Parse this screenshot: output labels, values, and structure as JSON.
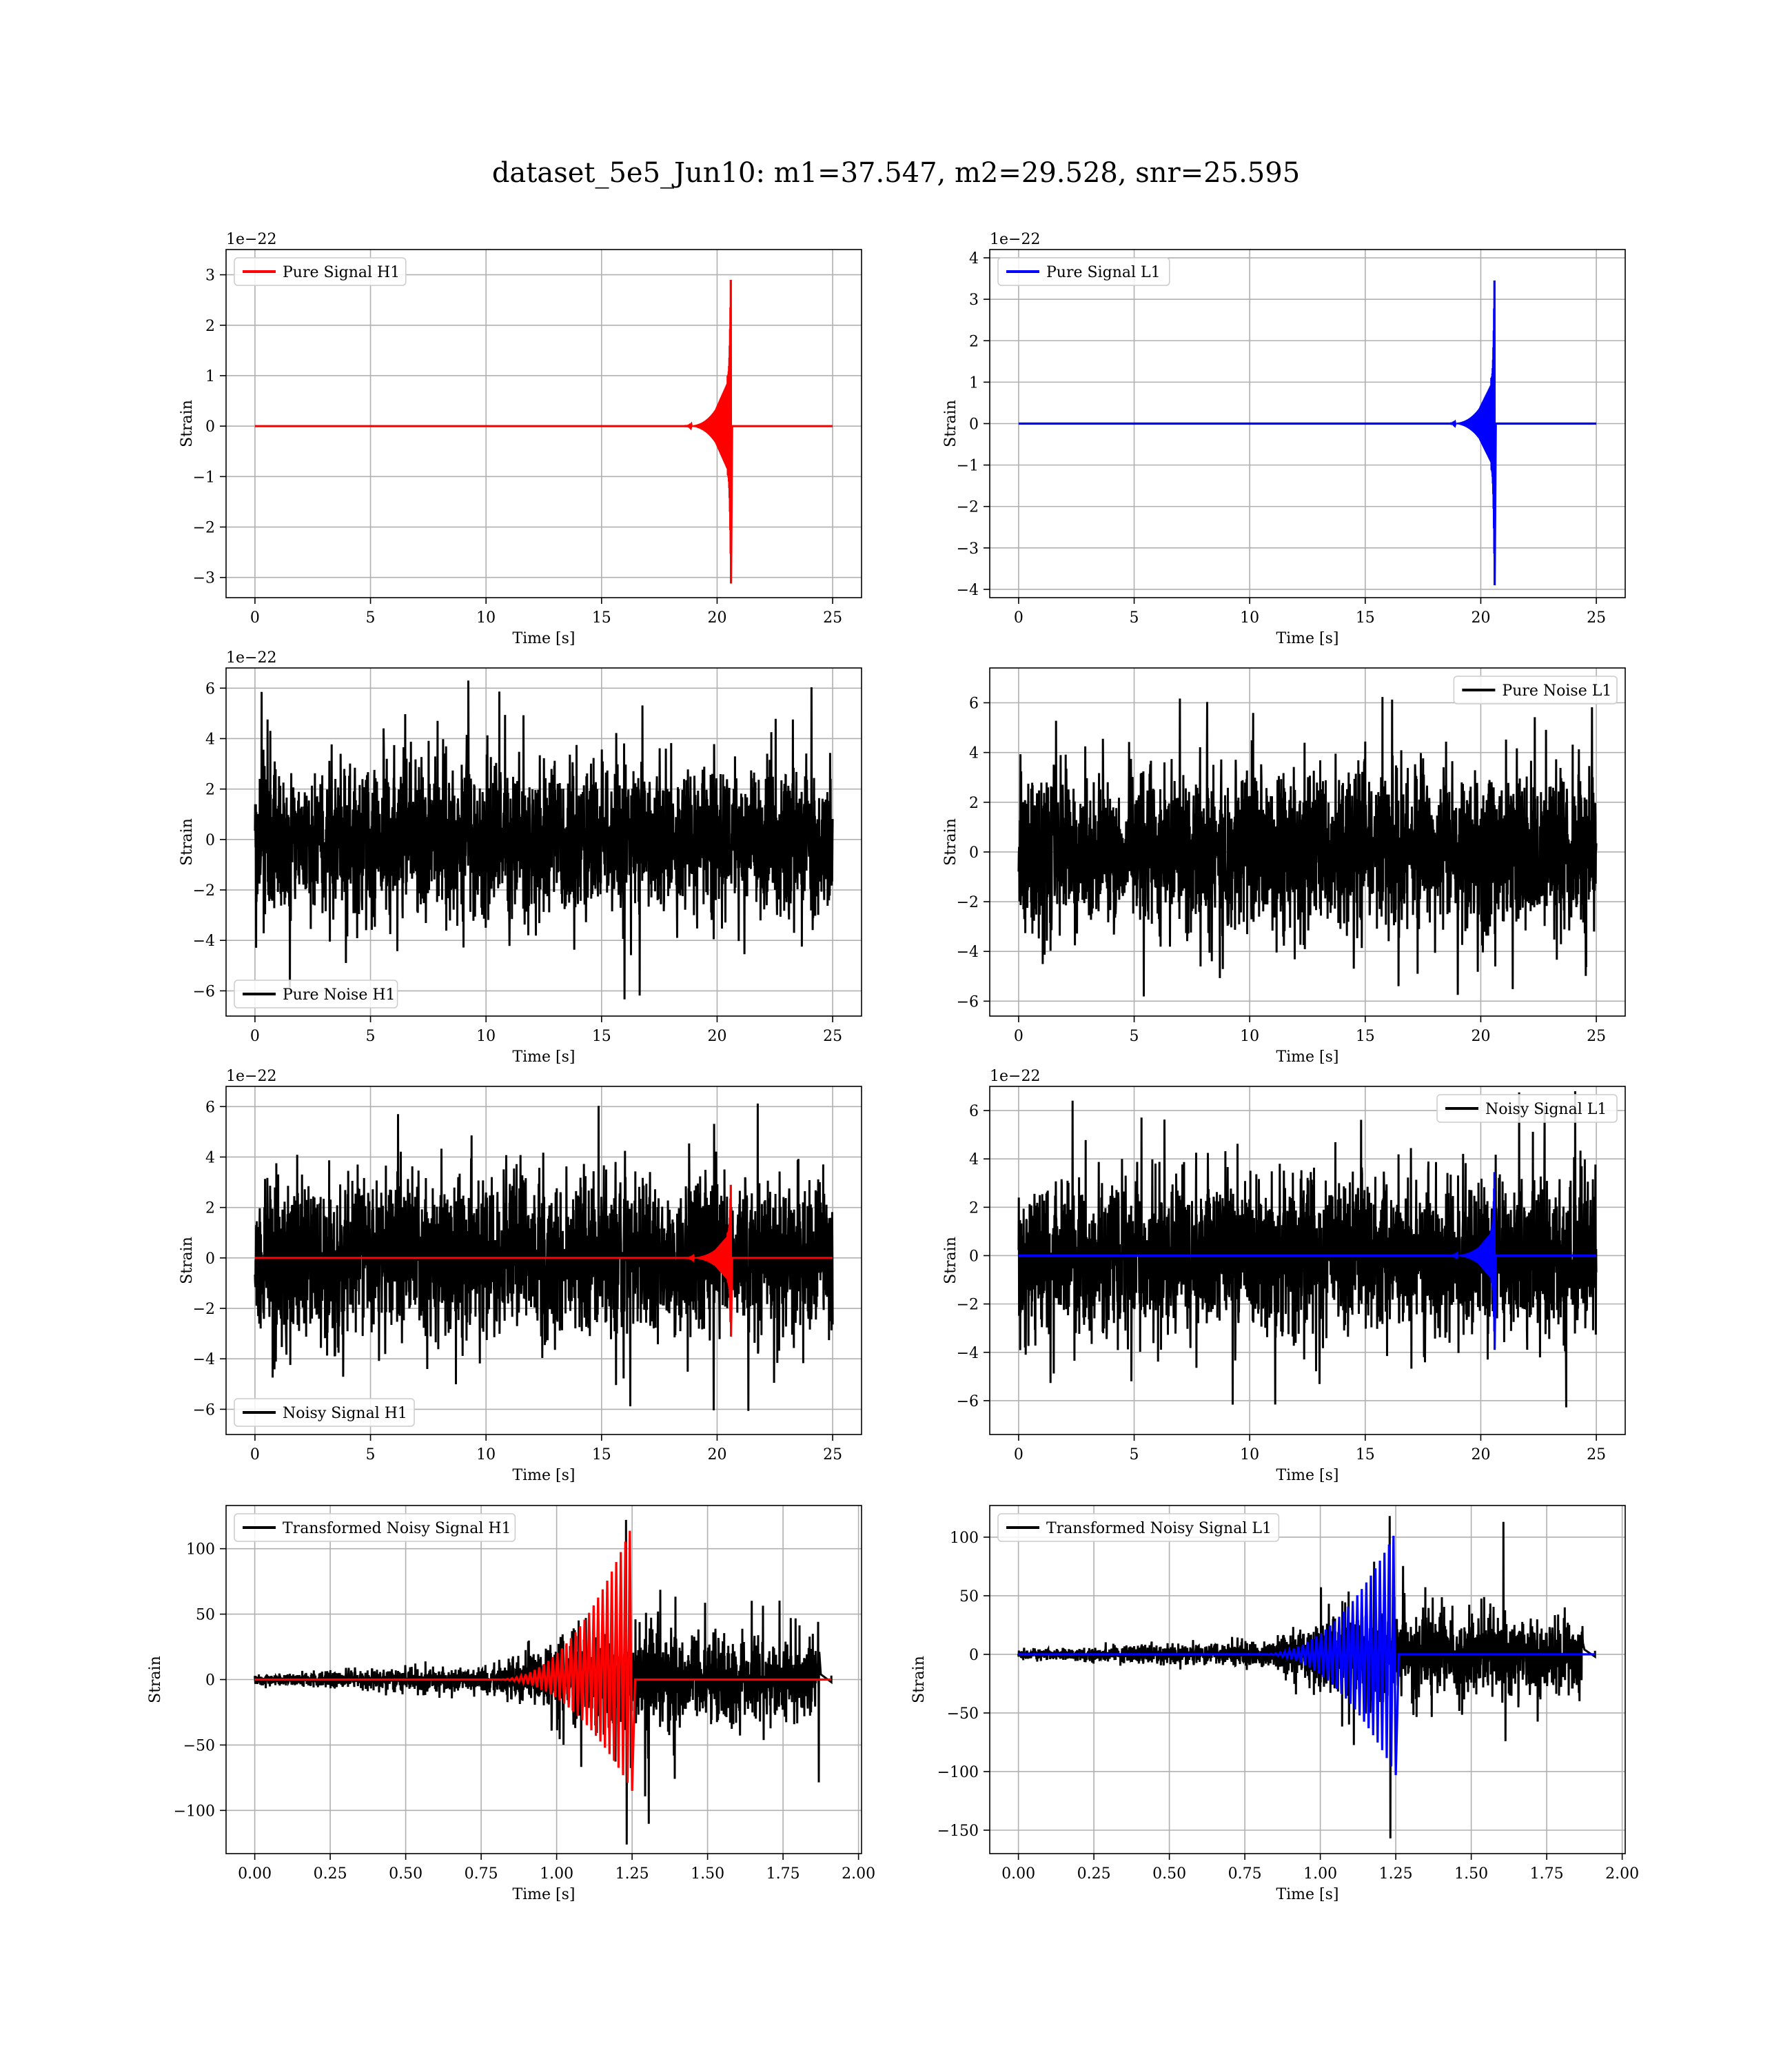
{
  "title": "dataset_5e5_Jun10: m1=37.547, m2=29.528, snr=25.595",
  "colors": {
    "red": "#ff0000",
    "blue": "#0000ff",
    "black": "#000000",
    "grid": "#b0b0b0"
  },
  "chart_data": [
    {
      "type": "line",
      "kind": "chirp",
      "legend": "Pure Signal H1",
      "legend_loc": "upper-left",
      "legend_color": "#ff0000",
      "offset_label": "1e−22",
      "xlabel": "Time [s]",
      "ylabel": "Strain",
      "xlim": [
        -1.25,
        26.25
      ],
      "ylim": [
        -3.4,
        3.5
      ],
      "xticks": [
        0,
        5,
        10,
        15,
        20,
        25
      ],
      "xtick_labels": [
        "0",
        "5",
        "10",
        "15",
        "20",
        "25"
      ],
      "yticks": [
        -3,
        -2,
        -1,
        0,
        1,
        2,
        3
      ],
      "ytick_labels": [
        "−3",
        "−2",
        "−1",
        "0",
        "1",
        "2",
        "3"
      ],
      "grid": true,
      "series": [
        {
          "color": "#ff0000",
          "x_range": [
            0,
            25
          ],
          "merger": 20.6,
          "peak_pos": 3.22,
          "peak_neg": -3.12,
          "shoulder": 1.0,
          "onset": 18.5
        }
      ]
    },
    {
      "type": "line",
      "kind": "chirp",
      "legend": "Pure Signal L1",
      "legend_loc": "upper-left",
      "legend_color": "#0000ff",
      "offset_label": "1e−22",
      "xlabel": "Time [s]",
      "ylabel": "Strain",
      "xlim": [
        -1.25,
        26.25
      ],
      "ylim": [
        -4.2,
        4.2
      ],
      "xticks": [
        0,
        5,
        10,
        15,
        20,
        25
      ],
      "xtick_labels": [
        "0",
        "5",
        "10",
        "15",
        "20",
        "25"
      ],
      "yticks": [
        -4,
        -3,
        -2,
        -1,
        0,
        1,
        2,
        3,
        4
      ],
      "ytick_labels": [
        "−4",
        "−3",
        "−2",
        "−1",
        "0",
        "1",
        "2",
        "3",
        "4"
      ],
      "grid": true,
      "series": [
        {
          "color": "#0000ff",
          "x_range": [
            0,
            25
          ],
          "merger": 20.6,
          "peak_pos": 3.85,
          "peak_neg": -3.9,
          "shoulder": 1.1,
          "onset": 18.5
        }
      ]
    },
    {
      "type": "line",
      "kind": "noise",
      "legend": "Pure Noise H1",
      "legend_loc": "lower-left",
      "legend_color": "#000000",
      "offset_label": "1e−22",
      "xlabel": "Time [s]",
      "ylabel": "Strain",
      "xlim": [
        -1.25,
        26.25
      ],
      "ylim": [
        -7.0,
        6.8
      ],
      "xticks": [
        0,
        5,
        10,
        15,
        20,
        25
      ],
      "xtick_labels": [
        "0",
        "5",
        "10",
        "15",
        "20",
        "25"
      ],
      "yticks": [
        -6,
        -4,
        -2,
        0,
        2,
        4,
        6
      ],
      "ytick_labels": [
        "−6",
        "−4",
        "−2",
        "0",
        "2",
        "4",
        "6"
      ],
      "grid": true,
      "series": [
        {
          "color": "#000000",
          "x_range": [
            0,
            25
          ],
          "band": 3.6,
          "max": 6.3,
          "min": -6.5
        }
      ]
    },
    {
      "type": "line",
      "kind": "noise",
      "legend": "Pure Noise L1",
      "legend_loc": "upper-right",
      "legend_color": "#000000",
      "offset_label": "",
      "xlabel": "Time [s]",
      "ylabel": "Strain",
      "xlim": [
        -1.25,
        26.25
      ],
      "ylim": [
        -6.6,
        7.4
      ],
      "xticks": [
        0,
        5,
        10,
        15,
        20,
        25
      ],
      "xtick_labels": [
        "0",
        "5",
        "10",
        "15",
        "20",
        "25"
      ],
      "yticks": [
        -6,
        -4,
        -2,
        0,
        2,
        4,
        6
      ],
      "ytick_labels": [
        "−6",
        "−4",
        "−2",
        "0",
        "2",
        "4",
        "6"
      ],
      "grid": true,
      "series": [
        {
          "color": "#000000",
          "x_range": [
            0,
            25
          ],
          "band": 3.8,
          "max": 6.8,
          "min": -6.1
        }
      ]
    },
    {
      "type": "line",
      "kind": "noisy_chirp",
      "legend": "Noisy Signal H1",
      "legend_loc": "lower-left",
      "legend_color": "#000000",
      "offset_label": "1e−22",
      "xlabel": "Time [s]",
      "ylabel": "Strain",
      "xlim": [
        -1.25,
        26.25
      ],
      "ylim": [
        -7.0,
        6.8
      ],
      "xticks": [
        0,
        5,
        10,
        15,
        20,
        25
      ],
      "xtick_labels": [
        "0",
        "5",
        "10",
        "15",
        "20",
        "25"
      ],
      "yticks": [
        -6,
        -4,
        -2,
        0,
        2,
        4,
        6
      ],
      "ytick_labels": [
        "−6",
        "−4",
        "−2",
        "0",
        "2",
        "4",
        "6"
      ],
      "grid": true,
      "series": [
        {
          "color": "#000000",
          "x_range": [
            0,
            25
          ],
          "band": 3.6,
          "max": 6.3,
          "min": -6.5
        },
        {
          "color": "#ff0000",
          "x_range": [
            0,
            25
          ],
          "merger": 20.6,
          "peak_pos": 3.22,
          "peak_neg": -3.12,
          "shoulder": 1.0,
          "onset": 18.5
        }
      ]
    },
    {
      "type": "line",
      "kind": "noisy_chirp",
      "legend": "Noisy Signal L1",
      "legend_loc": "upper-right",
      "legend_color": "#000000",
      "offset_label": "1e−22",
      "xlabel": "Time [s]",
      "ylabel": "Strain",
      "xlim": [
        -1.25,
        26.25
      ],
      "ylim": [
        -7.4,
        7.0
      ],
      "xticks": [
        0,
        5,
        10,
        15,
        20,
        25
      ],
      "xtick_labels": [
        "0",
        "5",
        "10",
        "15",
        "20",
        "25"
      ],
      "yticks": [
        -6,
        -4,
        -2,
        0,
        2,
        4,
        6
      ],
      "ytick_labels": [
        "−6",
        "−4",
        "−2",
        "0",
        "2",
        "4",
        "6"
      ],
      "grid": true,
      "series": [
        {
          "color": "#000000",
          "x_range": [
            0,
            25
          ],
          "band": 3.8,
          "max": 6.8,
          "min": -6.8
        },
        {
          "color": "#0000ff",
          "x_range": [
            0,
            25
          ],
          "merger": 20.6,
          "peak_pos": 3.85,
          "peak_neg": -3.9,
          "shoulder": 1.1,
          "onset": 18.5
        }
      ]
    },
    {
      "type": "line",
      "kind": "transformed",
      "legend": "Transformed Noisy Signal H1",
      "legend_loc": "upper-left",
      "legend_color": "#000000",
      "offset_label": "",
      "xlabel": "Time [s]",
      "ylabel": "Strain",
      "xlim": [
        -0.095,
        2.01
      ],
      "ylim": [
        -133,
        133
      ],
      "xticks": [
        0,
        0.25,
        0.5,
        0.75,
        1.0,
        1.25,
        1.5,
        1.75,
        2.0
      ],
      "xtick_labels": [
        "0.00",
        "0.25",
        "0.50",
        "0.75",
        "1.00",
        "1.25",
        "1.50",
        "1.75",
        "2.00"
      ],
      "yticks": [
        -100,
        -50,
        0,
        50,
        100
      ],
      "ytick_labels": [
        "−100",
        "−50",
        "0",
        "50",
        "100"
      ],
      "grid": true,
      "series": [
        {
          "color": "#000000",
          "x_range": [
            0,
            1.91
          ],
          "noise_end": 1.87,
          "merger": 1.25,
          "max": 122,
          "min": -126
        },
        {
          "color": "#ff0000",
          "x_range": [
            0,
            1.91
          ],
          "merger": 1.25,
          "peak_pos": 118,
          "peak_neg": -85,
          "onset": 0.8
        }
      ]
    },
    {
      "type": "line",
      "kind": "transformed",
      "legend": "Transformed Noisy Signal L1",
      "legend_loc": "upper-left",
      "legend_color": "#000000",
      "offset_label": "",
      "xlabel": "Time [s]",
      "ylabel": "Strain",
      "xlim": [
        -0.095,
        2.01
      ],
      "ylim": [
        -170,
        127
      ],
      "xticks": [
        0,
        0.25,
        0.5,
        0.75,
        1.0,
        1.25,
        1.5,
        1.75,
        2.0
      ],
      "xtick_labels": [
        "0.00",
        "0.25",
        "0.50",
        "0.75",
        "1.00",
        "1.25",
        "1.50",
        "1.75",
        "2.00"
      ],
      "yticks": [
        -150,
        -100,
        -50,
        0,
        50,
        100
      ],
      "ytick_labels": [
        "−150",
        "−100",
        "−50",
        "0",
        "50",
        "100"
      ],
      "grid": true,
      "series": [
        {
          "color": "#000000",
          "x_range": [
            0,
            1.91
          ],
          "noise_end": 1.87,
          "merger": 1.25,
          "max": 118,
          "min": -157
        },
        {
          "color": "#0000ff",
          "x_range": [
            0,
            1.91
          ],
          "merger": 1.25,
          "peak_pos": 105,
          "peak_neg": -103,
          "onset": 0.8
        }
      ]
    }
  ]
}
